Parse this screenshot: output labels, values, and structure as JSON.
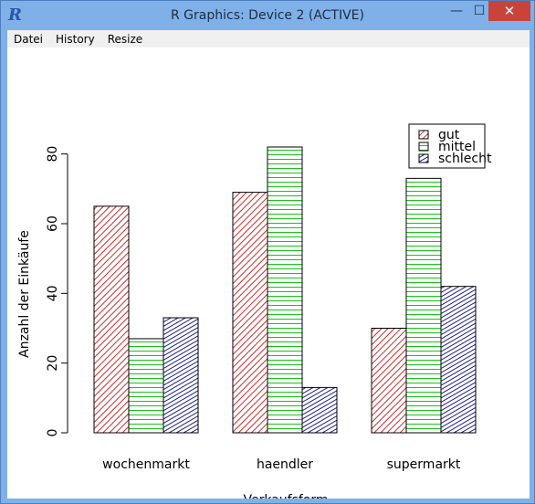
{
  "window": {
    "title": "R Graphics: Device 2 (ACTIVE)",
    "app_icon": "R",
    "minimize_symbol": "—",
    "maximize_symbol": "☐",
    "close_symbol": "✕"
  },
  "menu": {
    "items": [
      "Datei",
      "History",
      "Resize"
    ]
  },
  "colors": {
    "gut": "#cc2a2a",
    "mittel": "#16c416",
    "schlecht": "#1a1f8c",
    "close_button": "#c9433b"
  },
  "chart_data": {
    "type": "bar",
    "grouped": true,
    "categories": [
      "wochenmarkt",
      "haendler",
      "supermarkt"
    ],
    "series": [
      {
        "name": "gut",
        "values": [
          65,
          69,
          30
        ]
      },
      {
        "name": "mittel",
        "values": [
          27,
          82,
          73
        ]
      },
      {
        "name": "schlecht",
        "values": [
          33,
          13,
          42
        ]
      }
    ],
    "xlabel": "Verkaufsform",
    "ylabel": "Anzahl der Einkäufe",
    "yticks": [
      0,
      20,
      40,
      60,
      80
    ],
    "ylim": [
      0,
      82
    ],
    "legend_position": "top-right",
    "fill": "hatched",
    "grid": false
  }
}
